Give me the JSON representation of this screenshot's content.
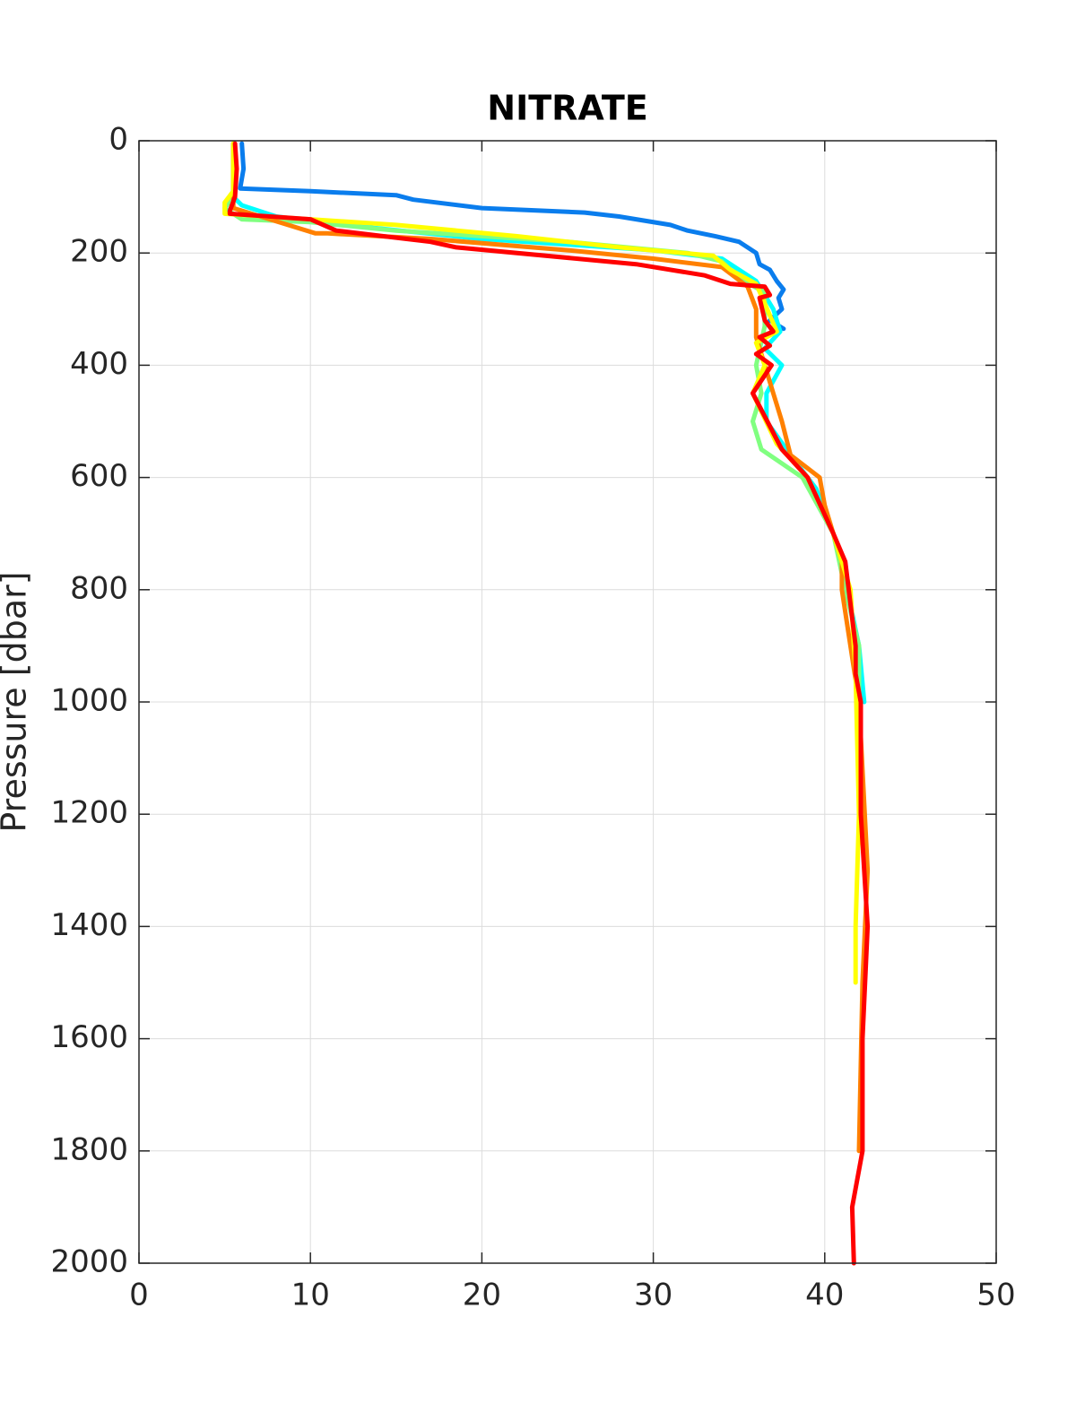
{
  "chart_data": {
    "type": "line",
    "title": "NITRATE",
    "y_label": "Pressure [dbar]",
    "xlim": [
      0,
      50
    ],
    "xticks": [
      0,
      10,
      20,
      30,
      40,
      50
    ],
    "ylim": [
      2000,
      0
    ],
    "yticks": [
      0,
      200,
      400,
      600,
      800,
      1000,
      1200,
      1400,
      1600,
      1800,
      2000
    ],
    "grid": true,
    "series": [
      {
        "color": "#0a7ded",
        "x": [
          6,
          6.1,
          5.9,
          10,
          15,
          16,
          20,
          26,
          28,
          31,
          32,
          33.6,
          35,
          36,
          36.2,
          36.8,
          37.2,
          37.6,
          37.3,
          37.5,
          36.8,
          37.6
        ],
        "values": [
          5,
          50,
          85,
          90,
          97,
          105,
          120,
          128,
          135,
          150,
          160,
          170,
          180,
          200,
          220,
          230,
          250,
          265,
          280,
          300,
          320,
          335
        ]
      },
      {
        "color": "#00ffff",
        "x": [
          5.5,
          5.5,
          6,
          8,
          12,
          20,
          30,
          34,
          36,
          37,
          37.4,
          36.5,
          37.5,
          36.6,
          36.6,
          38,
          39.5,
          40.5,
          41.3,
          42,
          42.3
        ],
        "values": [
          5,
          100,
          115,
          135,
          150,
          175,
          195,
          210,
          250,
          300,
          340,
          370,
          400,
          450,
          500,
          560,
          620,
          700,
          800,
          900,
          1000
        ]
      },
      {
        "color": "#80ff80",
        "x": [
          5.5,
          5.5,
          5,
          6,
          10,
          15,
          25,
          32,
          34,
          35,
          36.5,
          36.5,
          36,
          36.3,
          35.8,
          36.3,
          38.7,
          40.5,
          41.2,
          42,
          42
        ],
        "values": [
          5,
          100,
          120,
          140,
          145,
          160,
          180,
          200,
          215,
          245,
          270,
          330,
          400,
          450,
          500,
          550,
          600,
          700,
          800,
          900,
          1000
        ]
      },
      {
        "color": "#ff8000",
        "x": [
          5.5,
          5.5,
          10.3,
          11,
          17,
          25,
          30,
          34,
          35.5,
          36,
          36,
          36.5,
          37,
          37.5,
          38,
          39.7,
          40,
          41,
          41,
          42,
          42.5,
          42.2,
          42
        ],
        "values": [
          5,
          120,
          165,
          165,
          175,
          195,
          210,
          225,
          260,
          300,
          350,
          400,
          450,
          500,
          560,
          600,
          650,
          750,
          800,
          1000,
          1300,
          1500,
          1800
        ]
      },
      {
        "color": "#ffff00",
        "x": [
          5.5,
          5.5,
          5,
          5,
          10,
          15,
          22,
          28,
          33.5,
          34.5,
          36,
          36.5,
          37.2,
          36,
          36.5,
          35.8,
          37.2,
          39,
          40.5,
          41.5,
          41.8,
          42,
          41.8,
          41.8
        ],
        "values": [
          5,
          90,
          110,
          130,
          140,
          150,
          170,
          190,
          205,
          230,
          255,
          290,
          340,
          360,
          400,
          450,
          540,
          600,
          700,
          800,
          950,
          1200,
          1400,
          1500
        ]
      },
      {
        "color": "#ff0000",
        "x": [
          5.6,
          5.7,
          5.6,
          5.3,
          5.3,
          10,
          11.5,
          17,
          18.5,
          29,
          33,
          34.5,
          36.5,
          36.8,
          36.2,
          36.5,
          37,
          36.2,
          36.8,
          36,
          36.9,
          35.8,
          37.5,
          39,
          40.5,
          41.2,
          41.8,
          41.8,
          42.1,
          42.1,
          42.5,
          42.2,
          42.2,
          41.6,
          41.7
        ],
        "values": [
          5,
          50,
          100,
          125,
          130,
          140,
          160,
          180,
          190,
          220,
          240,
          255,
          260,
          275,
          280,
          320,
          340,
          350,
          365,
          380,
          400,
          450,
          550,
          600,
          700,
          750,
          900,
          950,
          1000,
          1200,
          1400,
          1600,
          1800,
          1900,
          2000
        ]
      }
    ]
  }
}
